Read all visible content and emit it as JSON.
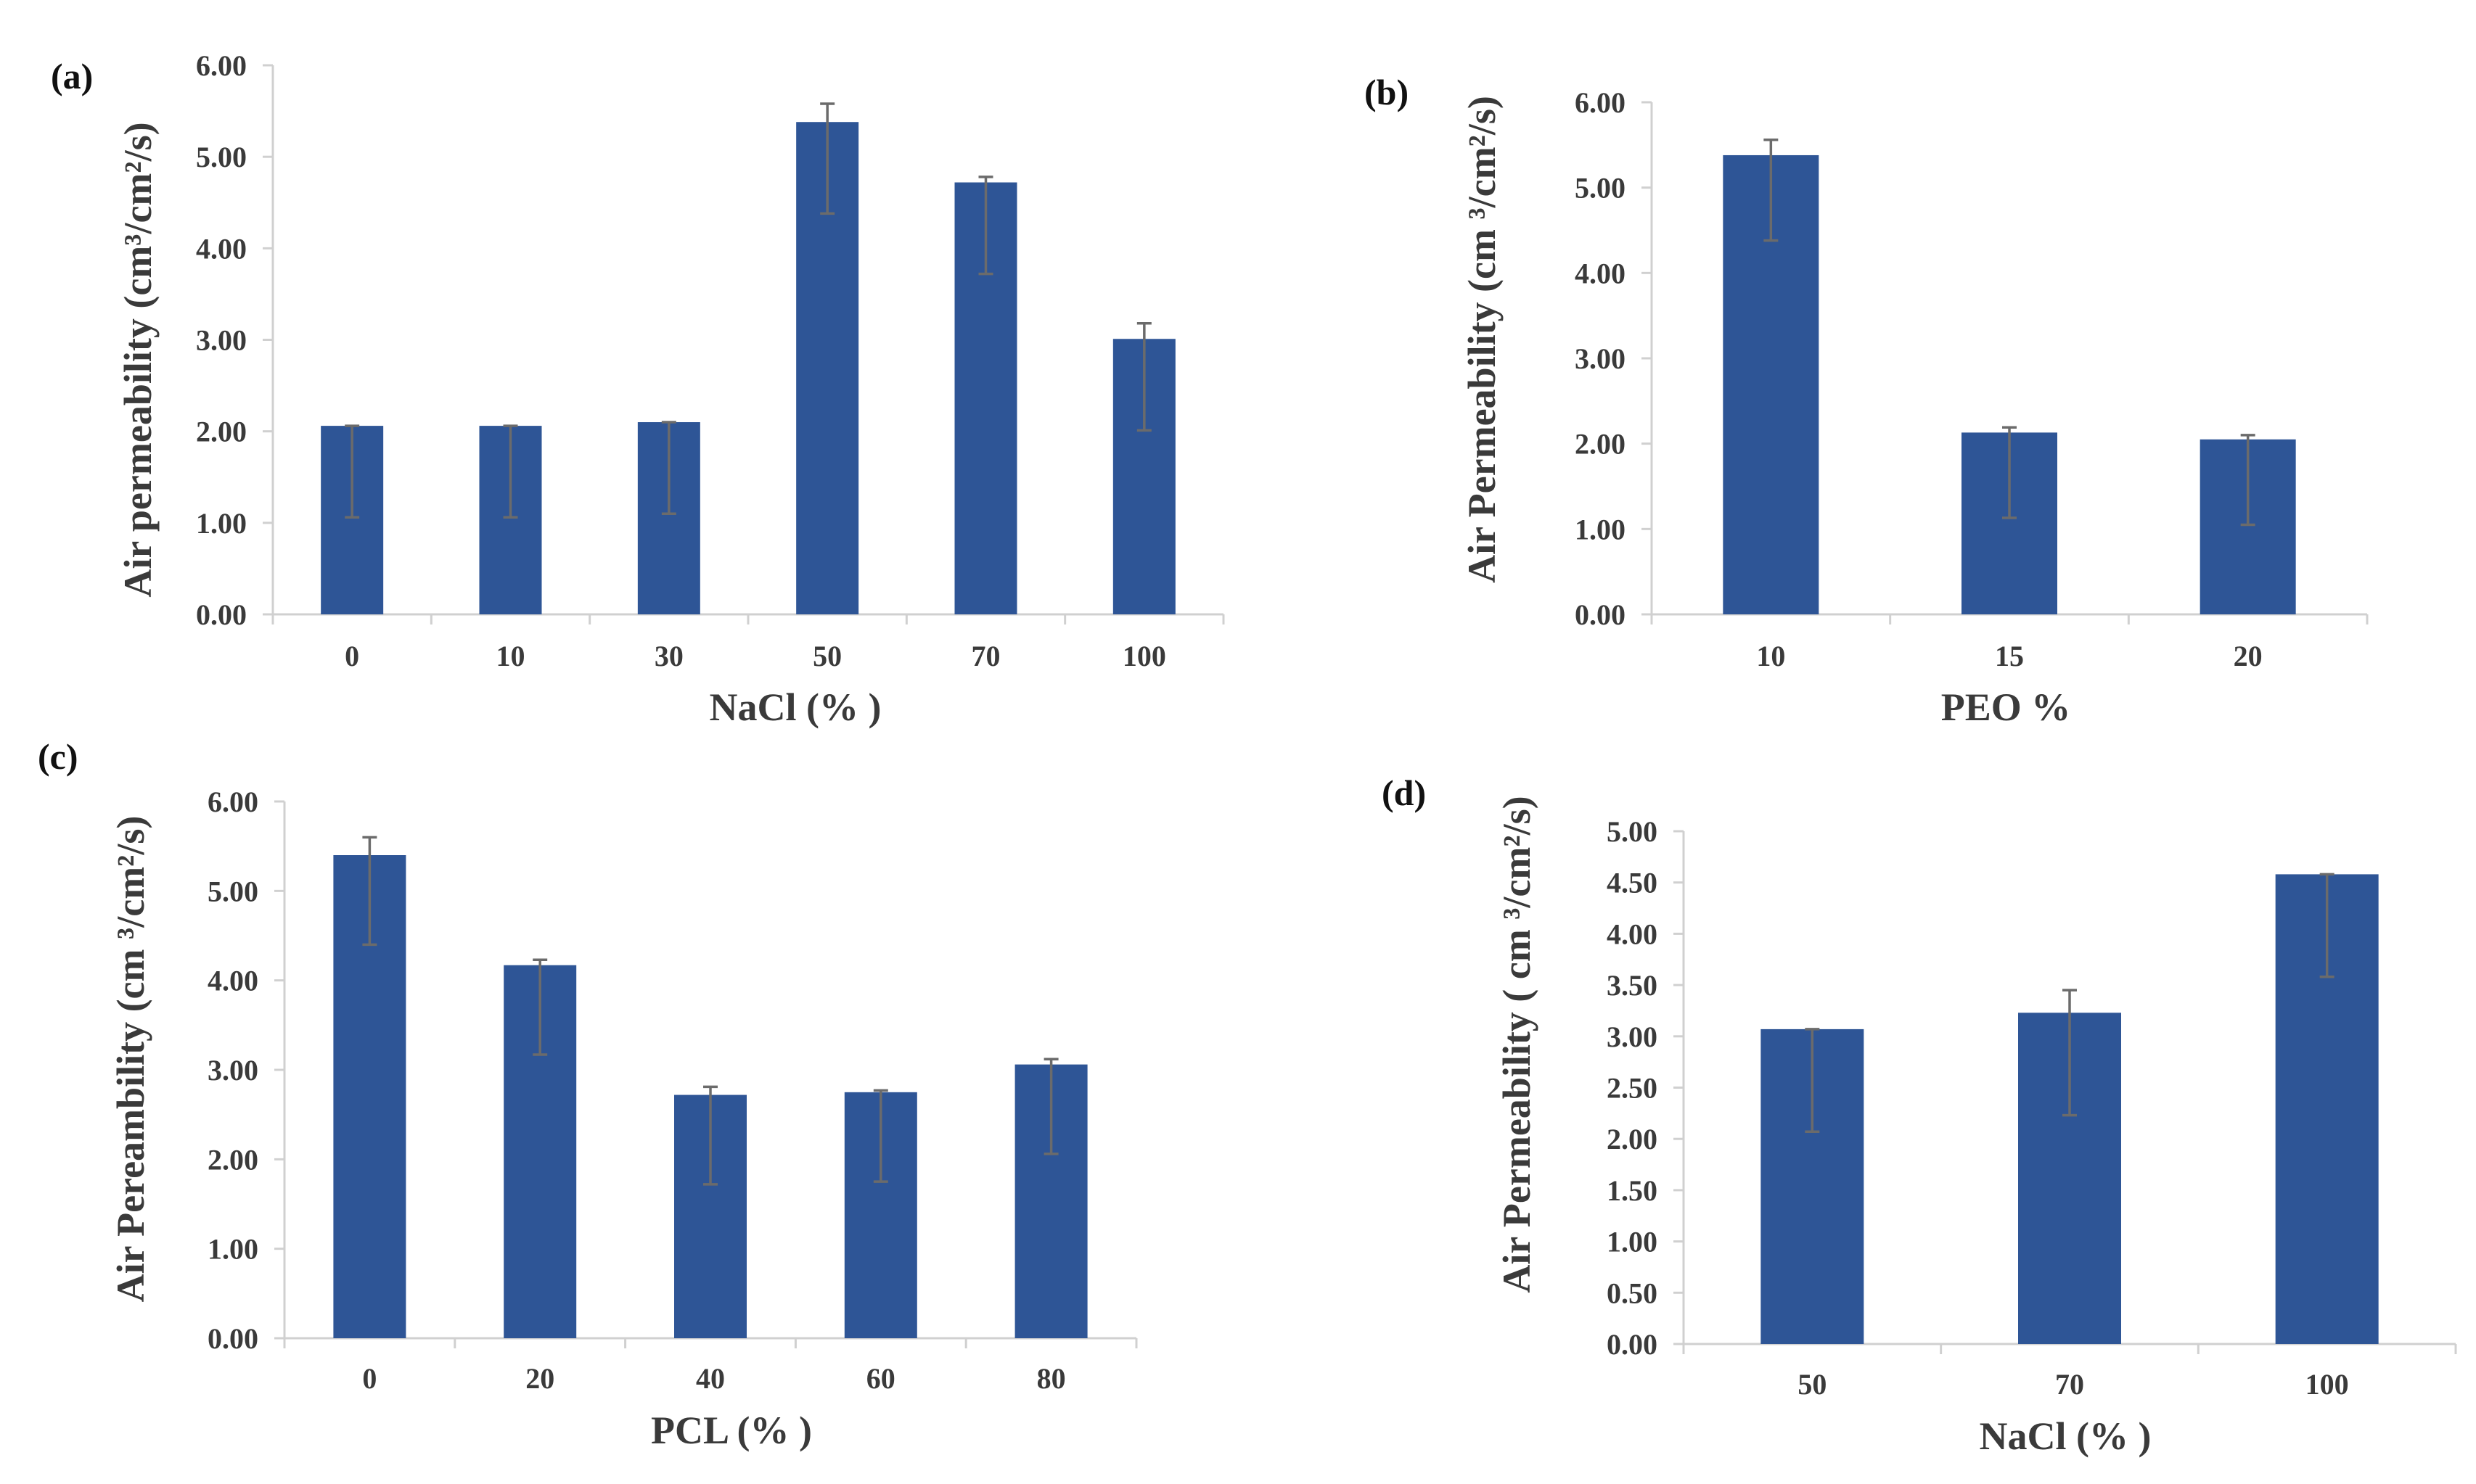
{
  "chart_data": [
    {
      "id": "a",
      "panel_label": "(a)",
      "type": "bar",
      "categories": [
        "0",
        "10",
        "30",
        "50",
        "70",
        "100"
      ],
      "values": [
        2.06,
        2.06,
        2.1,
        5.38,
        4.72,
        3.01
      ],
      "error_low": [
        1.0,
        1.0,
        1.0,
        1.0,
        1.0,
        1.0
      ],
      "error_high": [
        0.0,
        0.0,
        0.0,
        0.2,
        0.06,
        0.17
      ],
      "xlabel": "NaCl (% )",
      "ylabel": "Air permeability (cm³/cm²/s)",
      "ylim": [
        0,
        6
      ],
      "yticks": [
        "0.00",
        "1.00",
        "2.00",
        "3.00",
        "4.00",
        "5.00",
        "6.00"
      ],
      "grid": false
    },
    {
      "id": "b",
      "panel_label": "(b)",
      "type": "bar",
      "categories": [
        "10",
        "15",
        "20"
      ],
      "values": [
        5.38,
        2.13,
        2.05
      ],
      "error_low": [
        1.0,
        1.0,
        1.0
      ],
      "error_high": [
        0.18,
        0.06,
        0.05
      ],
      "xlabel": "PEO %",
      "ylabel": "Air Permeability (cm  ³/cm²/s)",
      "ylim": [
        0,
        6
      ],
      "yticks": [
        "0.00",
        "1.00",
        "2.00",
        "3.00",
        "4.00",
        "5.00",
        "6.00"
      ],
      "grid": false
    },
    {
      "id": "c",
      "panel_label": "(c)",
      "type": "bar",
      "categories": [
        "0",
        "20",
        "40",
        "60",
        "80"
      ],
      "values": [
        5.4,
        4.17,
        2.72,
        2.75,
        3.06
      ],
      "error_low": [
        1.0,
        1.0,
        1.0,
        1.0,
        1.0
      ],
      "error_high": [
        0.2,
        0.06,
        0.09,
        0.02,
        0.06
      ],
      "xlabel": "PCL (% )",
      "ylabel": "Air Pereambility (cm  ³/cm²/s)",
      "ylim": [
        0,
        6
      ],
      "yticks": [
        "0.00",
        "1.00",
        "2.00",
        "3.00",
        "4.00",
        "5.00",
        "6.00"
      ],
      "grid": false
    },
    {
      "id": "d",
      "panel_label": "(d)",
      "type": "bar",
      "categories": [
        "50",
        "70",
        "100"
      ],
      "values": [
        3.07,
        3.23,
        4.58
      ],
      "error_low": [
        1.0,
        1.0,
        1.0
      ],
      "error_high": [
        0.0,
        0.22,
        0.0
      ],
      "xlabel": "NaCl (% )",
      "ylabel": "Air Permeability ( cm  ³/cm²/s)",
      "ylim": [
        0,
        5
      ],
      "yticks": [
        "0.00",
        "0.50",
        "1.00",
        "1.50",
        "2.00",
        "2.50",
        "3.00",
        "3.50",
        "4.00",
        "4.50",
        "5.00"
      ],
      "grid": false
    }
  ]
}
